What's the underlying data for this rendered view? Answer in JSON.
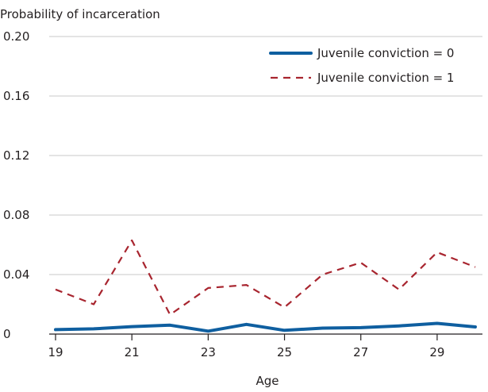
{
  "chart_data": {
    "type": "line",
    "title": "",
    "ylabel": "Probability of incarceration",
    "xlabel": "Age",
    "x": [
      19,
      20,
      21,
      22,
      23,
      24,
      25,
      26,
      27,
      28,
      29,
      30
    ],
    "xticks": [
      "19",
      "21",
      "23",
      "25",
      "27",
      "29"
    ],
    "xlim": [
      19,
      30
    ],
    "ylim": [
      0,
      0.2
    ],
    "yticks": [
      "0",
      "0.04",
      "0.08",
      "0.12",
      "0.16",
      "0.20"
    ],
    "grid": "horizontal",
    "legend_position": "top-right",
    "series": [
      {
        "name": "Juvenile conviction = 0",
        "color": "#0f5fa0",
        "style": "solid",
        "values": [
          0.003,
          0.0035,
          0.005,
          0.006,
          0.002,
          0.0065,
          0.0025,
          0.004,
          0.0043,
          0.0055,
          0.0072,
          0.0048
        ]
      },
      {
        "name": "Juvenile conviction = 1",
        "color": "#a8252f",
        "style": "dashed",
        "values": [
          0.03,
          0.02,
          0.063,
          0.013,
          0.031,
          0.033,
          0.018,
          0.04,
          0.048,
          0.03,
          0.055,
          0.045
        ]
      }
    ]
  }
}
